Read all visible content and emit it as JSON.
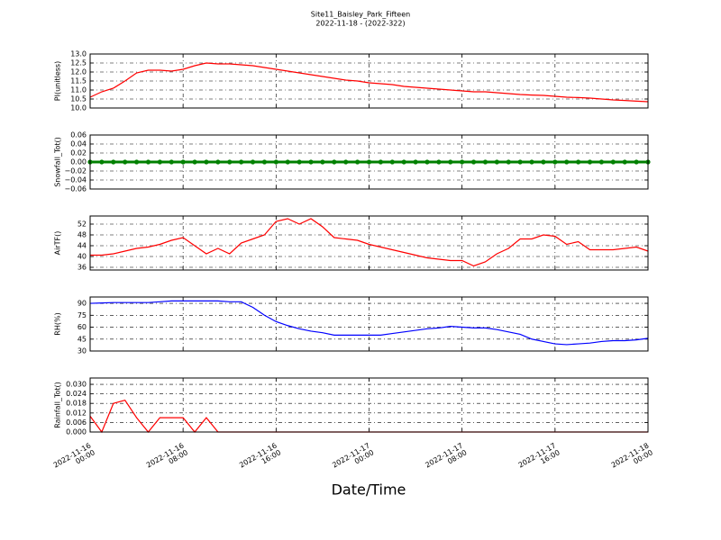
{
  "title": "Site11_Baisley_Park_Fifteen",
  "subtitle": "2022-11-18 - (2022-322)",
  "xlabel": "Date/Time",
  "chart_data": [
    {
      "type": "line",
      "ylabel": "PI(unitless)",
      "color": "#ff0000",
      "grid": true,
      "x": [
        "2022-11-16 00:00",
        "2022-11-16 01:00",
        "2022-11-16 02:00",
        "2022-11-16 03:00",
        "2022-11-16 04:00",
        "2022-11-16 05:00",
        "2022-11-16 06:00",
        "2022-11-16 07:00",
        "2022-11-16 08:00",
        "2022-11-16 09:00",
        "2022-11-16 10:00",
        "2022-11-16 11:00",
        "2022-11-16 12:00",
        "2022-11-16 13:00",
        "2022-11-16 14:00",
        "2022-11-16 15:00",
        "2022-11-16 16:00",
        "2022-11-16 17:00",
        "2022-11-16 18:00",
        "2022-11-16 19:00",
        "2022-11-16 20:00",
        "2022-11-16 21:00",
        "2022-11-16 22:00",
        "2022-11-16 23:00",
        "2022-11-17 00:00",
        "2022-11-17 01:00",
        "2022-11-17 02:00",
        "2022-11-17 03:00",
        "2022-11-17 04:00",
        "2022-11-17 05:00",
        "2022-11-17 06:00",
        "2022-11-17 07:00",
        "2022-11-17 08:00",
        "2022-11-17 09:00",
        "2022-11-17 10:00",
        "2022-11-17 11:00",
        "2022-11-17 12:00",
        "2022-11-17 13:00",
        "2022-11-17 14:00",
        "2022-11-17 15:00",
        "2022-11-17 16:00",
        "2022-11-17 17:00",
        "2022-11-17 18:00",
        "2022-11-17 19:00",
        "2022-11-17 20:00",
        "2022-11-17 21:00",
        "2022-11-17 22:00",
        "2022-11-17 23:00",
        "2022-11-18 00:00"
      ],
      "values": [
        10.6,
        10.9,
        11.1,
        11.5,
        11.95,
        12.1,
        12.1,
        12.05,
        12.15,
        12.35,
        12.5,
        12.45,
        12.45,
        12.4,
        12.35,
        12.25,
        12.15,
        12.05,
        11.95,
        11.85,
        11.75,
        11.65,
        11.55,
        11.5,
        11.4,
        11.35,
        11.3,
        11.2,
        11.15,
        11.1,
        11.05,
        11.0,
        10.95,
        10.9,
        10.9,
        10.85,
        10.8,
        10.75,
        10.72,
        10.7,
        10.65,
        10.6,
        10.58,
        10.55,
        10.5,
        10.45,
        10.42,
        10.38,
        10.35
      ],
      "xlim": [
        "2022-11-16 00:00",
        "2022-11-18 00:00"
      ],
      "xticks": [
        "2022-11-16 00:00",
        "2022-11-16 08:00",
        "2022-11-16 16:00",
        "2022-11-17 00:00",
        "2022-11-17 08:00",
        "2022-11-17 16:00",
        "2022-11-18 00:00"
      ],
      "ylim": [
        10,
        13
      ],
      "yticks": [
        {
          "value": 10,
          "label": "10.0"
        },
        10.5,
        {
          "value": 11,
          "label": "11.0"
        },
        11.5,
        {
          "value": 12,
          "label": "12.0"
        },
        12.5,
        {
          "value": 13,
          "label": "13.0"
        }
      ]
    },
    {
      "type": "line",
      "ylabel": "Snowfall_Tot()",
      "color": "#008000",
      "marker": true,
      "grid": true,
      "x": [
        "2022-11-16 00:00",
        "2022-11-16 01:00",
        "2022-11-16 02:00",
        "2022-11-16 03:00",
        "2022-11-16 04:00",
        "2022-11-16 05:00",
        "2022-11-16 06:00",
        "2022-11-16 07:00",
        "2022-11-16 08:00",
        "2022-11-16 09:00",
        "2022-11-16 10:00",
        "2022-11-16 11:00",
        "2022-11-16 12:00",
        "2022-11-16 13:00",
        "2022-11-16 14:00",
        "2022-11-16 15:00",
        "2022-11-16 16:00",
        "2022-11-16 17:00",
        "2022-11-16 18:00",
        "2022-11-16 19:00",
        "2022-11-16 20:00",
        "2022-11-16 21:00",
        "2022-11-16 22:00",
        "2022-11-16 23:00",
        "2022-11-17 00:00",
        "2022-11-17 01:00",
        "2022-11-17 02:00",
        "2022-11-17 03:00",
        "2022-11-17 04:00",
        "2022-11-17 05:00",
        "2022-11-17 06:00",
        "2022-11-17 07:00",
        "2022-11-17 08:00",
        "2022-11-17 09:00",
        "2022-11-17 10:00",
        "2022-11-17 11:00",
        "2022-11-17 12:00",
        "2022-11-17 13:00",
        "2022-11-17 14:00",
        "2022-11-17 15:00",
        "2022-11-17 16:00",
        "2022-11-17 17:00",
        "2022-11-17 18:00",
        "2022-11-17 19:00",
        "2022-11-17 20:00",
        "2022-11-17 21:00",
        "2022-11-17 22:00",
        "2022-11-17 23:00",
        "2022-11-18 00:00"
      ],
      "values": [
        0,
        0,
        0,
        0,
        0,
        0,
        0,
        0,
        0,
        0,
        0,
        0,
        0,
        0,
        0,
        0,
        0,
        0,
        0,
        0,
        0,
        0,
        0,
        0,
        0,
        0,
        0,
        0,
        0,
        0,
        0,
        0,
        0,
        0,
        0,
        0,
        0,
        0,
        0,
        0,
        0,
        0,
        0,
        0,
        0,
        0,
        0,
        0,
        0
      ],
      "xlim": [
        "2022-11-16 00:00",
        "2022-11-18 00:00"
      ],
      "xticks": [
        "2022-11-16 00:00",
        "2022-11-16 08:00",
        "2022-11-16 16:00",
        "2022-11-17 00:00",
        "2022-11-17 08:00",
        "2022-11-17 16:00",
        "2022-11-18 00:00"
      ],
      "ylim": [
        -0.06,
        0.06
      ],
      "yticks": [
        {
          "value": -0.06,
          "label": "−0.06"
        },
        {
          "value": -0.04,
          "label": "−0.04"
        },
        {
          "value": -0.02,
          "label": "−0.02"
        },
        {
          "value": 0,
          "label": "0.00"
        },
        0.02,
        0.04,
        0.06
      ]
    },
    {
      "type": "line",
      "ylabel": "AirTF()",
      "color": "#ff0000",
      "grid": true,
      "x": [
        "2022-11-16 00:00",
        "2022-11-16 01:00",
        "2022-11-16 02:00",
        "2022-11-16 03:00",
        "2022-11-16 04:00",
        "2022-11-16 05:00",
        "2022-11-16 06:00",
        "2022-11-16 07:00",
        "2022-11-16 08:00",
        "2022-11-16 09:00",
        "2022-11-16 10:00",
        "2022-11-16 11:00",
        "2022-11-16 12:00",
        "2022-11-16 13:00",
        "2022-11-16 14:00",
        "2022-11-16 15:00",
        "2022-11-16 16:00",
        "2022-11-16 17:00",
        "2022-11-16 18:00",
        "2022-11-16 19:00",
        "2022-11-16 20:00",
        "2022-11-16 21:00",
        "2022-11-16 22:00",
        "2022-11-16 23:00",
        "2022-11-17 00:00",
        "2022-11-17 01:00",
        "2022-11-17 02:00",
        "2022-11-17 03:00",
        "2022-11-17 04:00",
        "2022-11-17 05:00",
        "2022-11-17 06:00",
        "2022-11-17 07:00",
        "2022-11-17 08:00",
        "2022-11-17 09:00",
        "2022-11-17 10:00",
        "2022-11-17 11:00",
        "2022-11-17 12:00",
        "2022-11-17 13:00",
        "2022-11-17 14:00",
        "2022-11-17 15:00",
        "2022-11-17 16:00",
        "2022-11-17 17:00",
        "2022-11-17 18:00",
        "2022-11-17 19:00",
        "2022-11-17 20:00",
        "2022-11-17 21:00",
        "2022-11-17 22:00",
        "2022-11-17 23:00",
        "2022-11-18 00:00"
      ],
      "values": [
        40.5,
        40.5,
        41,
        42,
        43,
        43.5,
        44.5,
        46,
        47,
        44,
        41,
        43,
        41,
        45,
        46.5,
        48,
        53,
        54,
        52,
        54,
        51,
        47,
        46.5,
        46,
        44.5,
        43.5,
        42.5,
        41.5,
        40.5,
        39.5,
        39,
        38.5,
        38.5,
        36.5,
        38,
        41,
        43,
        46.5,
        46.5,
        48,
        47.5,
        44.5,
        45.5,
        42.5,
        42.5,
        42.5,
        43,
        43.5,
        42
      ],
      "xlim": [
        "2022-11-16 00:00",
        "2022-11-18 00:00"
      ],
      "xticks": [
        "2022-11-16 00:00",
        "2022-11-16 08:00",
        "2022-11-16 16:00",
        "2022-11-17 00:00",
        "2022-11-17 08:00",
        "2022-11-17 16:00",
        "2022-11-18 00:00"
      ],
      "ylim": [
        35,
        55
      ],
      "yticks": [
        36,
        40,
        44,
        48,
        52
      ]
    },
    {
      "type": "line",
      "ylabel": "RH(%)",
      "color": "#0000ff",
      "grid": true,
      "x": [
        "2022-11-16 00:00",
        "2022-11-16 01:00",
        "2022-11-16 02:00",
        "2022-11-16 03:00",
        "2022-11-16 04:00",
        "2022-11-16 05:00",
        "2022-11-16 06:00",
        "2022-11-16 07:00",
        "2022-11-16 08:00",
        "2022-11-16 09:00",
        "2022-11-16 10:00",
        "2022-11-16 11:00",
        "2022-11-16 12:00",
        "2022-11-16 13:00",
        "2022-11-16 14:00",
        "2022-11-16 15:00",
        "2022-11-16 16:00",
        "2022-11-16 17:00",
        "2022-11-16 18:00",
        "2022-11-16 19:00",
        "2022-11-16 20:00",
        "2022-11-16 21:00",
        "2022-11-16 22:00",
        "2022-11-16 23:00",
        "2022-11-17 00:00",
        "2022-11-17 01:00",
        "2022-11-17 02:00",
        "2022-11-17 03:00",
        "2022-11-17 04:00",
        "2022-11-17 05:00",
        "2022-11-17 06:00",
        "2022-11-17 07:00",
        "2022-11-17 08:00",
        "2022-11-17 09:00",
        "2022-11-17 10:00",
        "2022-11-17 11:00",
        "2022-11-17 12:00",
        "2022-11-17 13:00",
        "2022-11-17 14:00",
        "2022-11-17 15:00",
        "2022-11-17 16:00",
        "2022-11-17 17:00",
        "2022-11-17 18:00",
        "2022-11-17 19:00",
        "2022-11-17 20:00",
        "2022-11-17 21:00",
        "2022-11-17 22:00",
        "2022-11-17 23:00",
        "2022-11-18 00:00"
      ],
      "values": [
        90,
        90.5,
        91,
        91,
        91,
        91,
        92,
        93,
        93,
        93,
        93,
        93,
        92,
        92,
        85,
        75,
        67,
        62,
        58,
        55,
        53,
        50,
        50,
        50,
        50,
        50,
        52,
        54,
        56,
        58,
        59,
        61,
        60,
        59,
        59,
        57,
        54,
        51,
        45,
        42,
        39,
        38,
        39,
        40,
        42,
        43,
        43,
        44,
        46
      ],
      "xlim": [
        "2022-11-16 00:00",
        "2022-11-18 00:00"
      ],
      "xticks": [
        "2022-11-16 00:00",
        "2022-11-16 08:00",
        "2022-11-16 16:00",
        "2022-11-17 00:00",
        "2022-11-17 08:00",
        "2022-11-17 16:00",
        "2022-11-18 00:00"
      ],
      "ylim": [
        30,
        98
      ],
      "yticks": [
        30,
        45,
        60,
        75,
        90
      ]
    },
    {
      "type": "line",
      "ylabel": "Rainfall_Tot()",
      "color": "#ff0000",
      "grid": true,
      "x": [
        "2022-11-16 00:00",
        "2022-11-16 01:00",
        "2022-11-16 02:00",
        "2022-11-16 03:00",
        "2022-11-16 04:00",
        "2022-11-16 05:00",
        "2022-11-16 06:00",
        "2022-11-16 07:00",
        "2022-11-16 08:00",
        "2022-11-16 09:00",
        "2022-11-16 10:00",
        "2022-11-16 11:00",
        "2022-11-16 12:00",
        "2022-11-16 13:00",
        "2022-11-16 14:00",
        "2022-11-16 15:00",
        "2022-11-16 16:00",
        "2022-11-16 17:00",
        "2022-11-16 18:00",
        "2022-11-16 19:00",
        "2022-11-16 20:00",
        "2022-11-16 21:00",
        "2022-11-16 22:00",
        "2022-11-16 23:00",
        "2022-11-17 00:00",
        "2022-11-17 01:00",
        "2022-11-17 02:00",
        "2022-11-17 03:00",
        "2022-11-17 04:00",
        "2022-11-17 05:00",
        "2022-11-17 06:00",
        "2022-11-17 07:00",
        "2022-11-17 08:00",
        "2022-11-17 09:00",
        "2022-11-17 10:00",
        "2022-11-17 11:00",
        "2022-11-17 12:00",
        "2022-11-17 13:00",
        "2022-11-17 14:00",
        "2022-11-17 15:00",
        "2022-11-17 16:00",
        "2022-11-17 17:00",
        "2022-11-17 18:00",
        "2022-11-17 19:00",
        "2022-11-17 20:00",
        "2022-11-17 21:00",
        "2022-11-17 22:00",
        "2022-11-17 23:00",
        "2022-11-18 00:00"
      ],
      "values": [
        0.01,
        0,
        0.018,
        0.02,
        0.009,
        0,
        0.009,
        0.009,
        0.009,
        0,
        0.009,
        0,
        0,
        0,
        0,
        0,
        0,
        0,
        0,
        0,
        0,
        0,
        0,
        0,
        0,
        0,
        0,
        0,
        0,
        0,
        0,
        0,
        0,
        0,
        0,
        0,
        0,
        0,
        0,
        0,
        0,
        0,
        0,
        0,
        0,
        0,
        0,
        0,
        0
      ],
      "xlim": [
        "2022-11-16 00:00",
        "2022-11-18 00:00"
      ],
      "xticks": [
        "2022-11-16 00:00",
        "2022-11-16 08:00",
        "2022-11-16 16:00",
        "2022-11-17 00:00",
        "2022-11-17 08:00",
        "2022-11-17 16:00",
        "2022-11-18 00:00"
      ],
      "ylim": [
        0,
        0.034
      ],
      "yticks": [
        {
          "value": 0,
          "label": "0.000"
        },
        0.006,
        0.012,
        0.018,
        0.024,
        {
          "value": 0.03,
          "label": "0.030"
        }
      ]
    }
  ]
}
